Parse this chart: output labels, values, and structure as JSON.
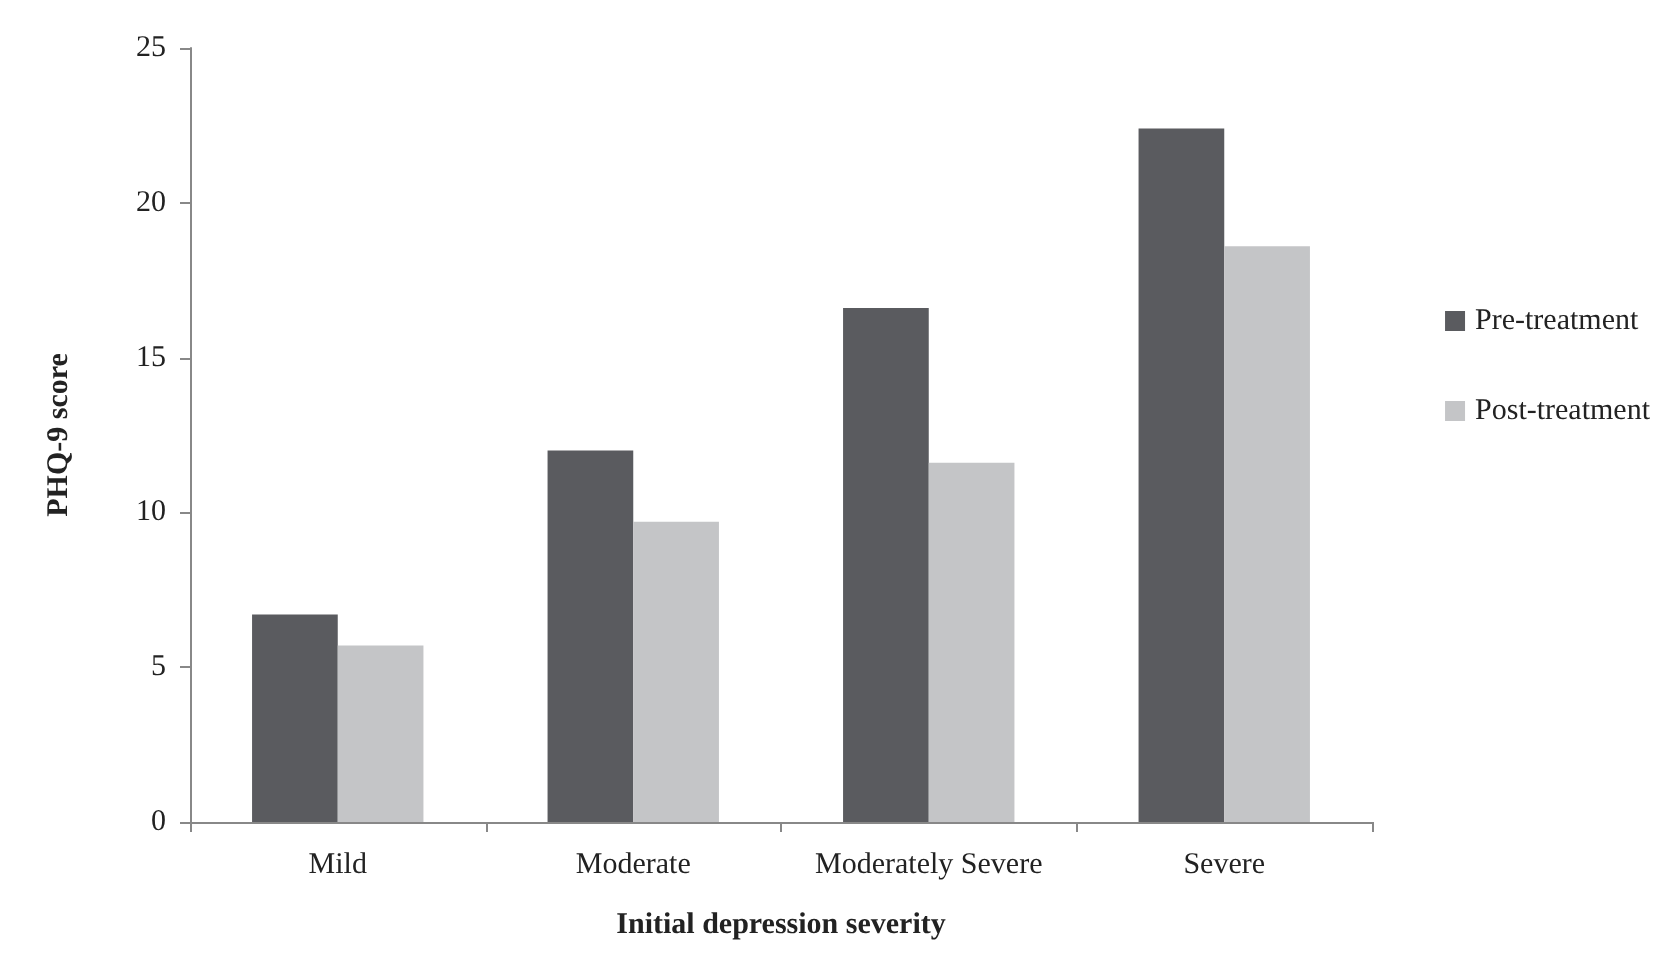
{
  "chart_data": {
    "type": "bar",
    "xlabel": "Initial depression severity",
    "ylabel": "PHQ-9 score",
    "categories": [
      "Mild",
      "Moderate",
      "Moderately Severe",
      "Severe"
    ],
    "series": [
      {
        "name": "Pre-treatment",
        "color": "#5a5b5f",
        "values": [
          6.7,
          12.0,
          16.6,
          22.4
        ]
      },
      {
        "name": "Post-treatment",
        "color": "#c4c5c7",
        "values": [
          5.7,
          9.7,
          11.6,
          18.6
        ]
      }
    ],
    "ylim": [
      0,
      25
    ],
    "yticks": [
      0,
      5,
      10,
      15,
      20,
      25
    ],
    "grid": false,
    "legend": "right"
  }
}
